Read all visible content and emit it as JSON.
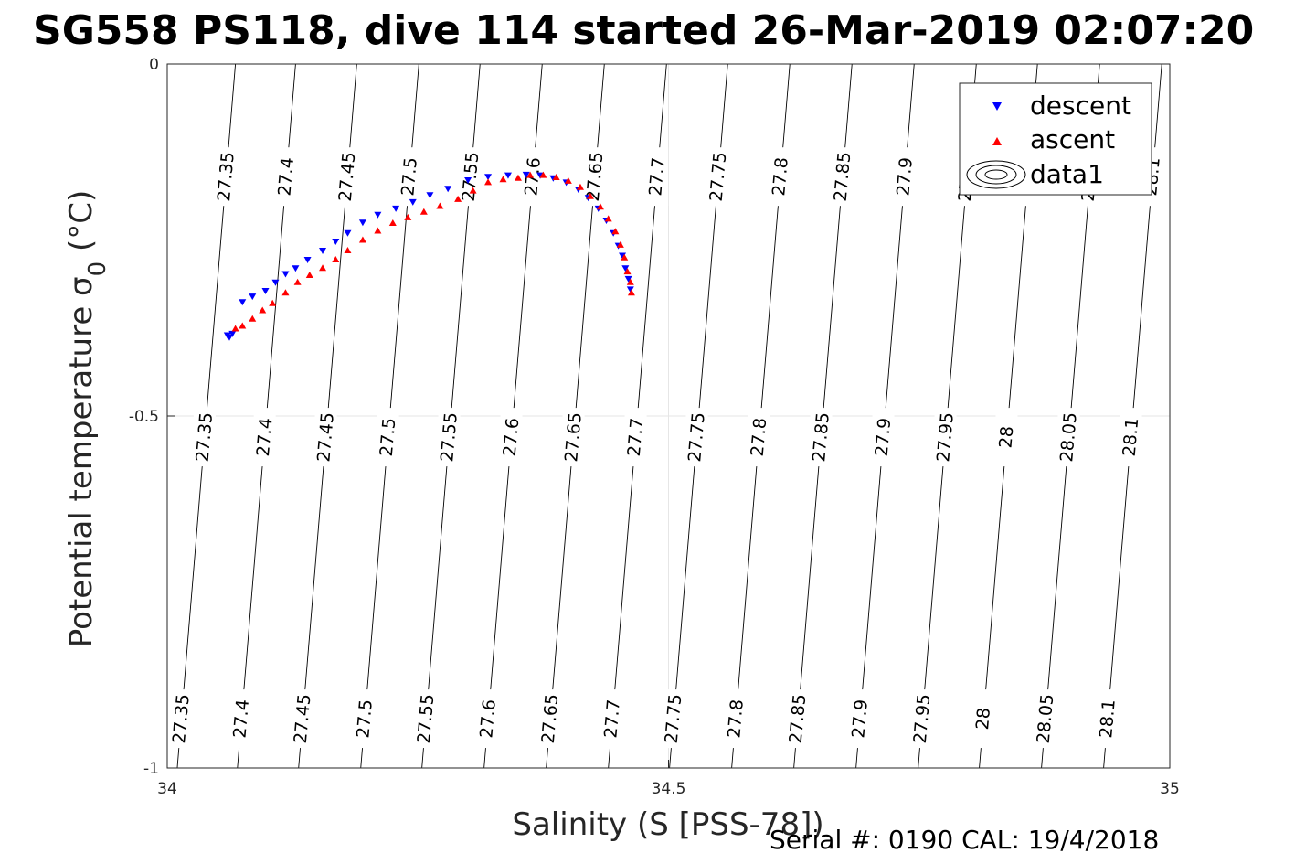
{
  "chart_data": {
    "type": "scatter",
    "title": "SG558 PS118, dive 114 started 26-Mar-2019 02:07:20",
    "xlabel": "Salinity (S [PSS-78])",
    "ylabel": "Potential temperature σ",
    "ylabel_subscript": "0",
    "ylabel_unit": " (°C)",
    "xlim": [
      34,
      35
    ],
    "ylim": [
      -1,
      0
    ],
    "xticks": [
      "34",
      "34.5",
      "35"
    ],
    "yticks": [
      "0",
      "-0.5",
      "-1"
    ],
    "grid": true,
    "legend_position": "top-right",
    "legend": [
      "descent",
      "ascent",
      "data1"
    ],
    "contour_levels": [
      "27.35",
      "27.4",
      "27.45",
      "27.5",
      "27.55",
      "27.6",
      "27.65",
      "27.7",
      "27.75",
      "27.8",
      "27.85",
      "27.9",
      "27.95",
      "28",
      "28.05",
      "28.1"
    ],
    "contour_x_at_bottom": [
      34.01,
      34.07,
      34.131,
      34.193,
      34.254,
      34.316,
      34.378,
      34.44,
      34.501,
      34.563,
      34.625,
      34.687,
      34.749,
      34.81,
      34.872,
      34.934
    ],
    "series": [
      {
        "name": "descent",
        "color": "#0000ff",
        "marker": "triangle-down",
        "x": [
          34.06,
          34.062,
          34.065,
          34.075,
          34.085,
          34.098,
          34.108,
          34.118,
          34.128,
          34.14,
          34.155,
          34.168,
          34.18,
          34.195,
          34.21,
          34.228,
          34.245,
          34.262,
          34.28,
          34.3,
          34.32,
          34.34,
          34.358,
          34.372,
          34.385,
          34.398,
          34.41,
          34.42,
          34.43,
          34.438,
          34.445,
          34.45,
          34.454,
          34.457,
          34.46,
          34.462
        ],
        "y": [
          -0.385,
          -0.388,
          -0.383,
          -0.338,
          -0.33,
          -0.322,
          -0.31,
          -0.298,
          -0.29,
          -0.278,
          -0.265,
          -0.252,
          -0.24,
          -0.225,
          -0.214,
          -0.205,
          -0.196,
          -0.186,
          -0.177,
          -0.165,
          -0.16,
          -0.158,
          -0.157,
          -0.158,
          -0.162,
          -0.168,
          -0.178,
          -0.19,
          -0.205,
          -0.222,
          -0.24,
          -0.258,
          -0.272,
          -0.29,
          -0.305,
          -0.32
        ]
      },
      {
        "name": "ascent",
        "color": "#ff0000",
        "marker": "triangle-up",
        "x": [
          34.068,
          34.075,
          34.085,
          34.095,
          34.105,
          34.118,
          34.13,
          34.142,
          34.155,
          34.168,
          34.18,
          34.195,
          34.21,
          34.225,
          34.24,
          34.256,
          34.272,
          34.29,
          34.305,
          34.32,
          34.335,
          34.35,
          34.362,
          34.375,
          34.388,
          34.4,
          34.412,
          34.422,
          34.432,
          34.44,
          34.447,
          34.452,
          34.456,
          34.459,
          34.462,
          34.463
        ],
        "y": [
          -0.376,
          -0.372,
          -0.362,
          -0.35,
          -0.34,
          -0.325,
          -0.31,
          -0.3,
          -0.29,
          -0.278,
          -0.265,
          -0.25,
          -0.237,
          -0.226,
          -0.218,
          -0.21,
          -0.202,
          -0.192,
          -0.18,
          -0.168,
          -0.164,
          -0.162,
          -0.158,
          -0.158,
          -0.161,
          -0.166,
          -0.175,
          -0.188,
          -0.203,
          -0.22,
          -0.238,
          -0.257,
          -0.275,
          -0.295,
          -0.31,
          -0.325
        ]
      }
    ]
  },
  "footer": "Serial #: 0190  CAL: 19/4/2018"
}
